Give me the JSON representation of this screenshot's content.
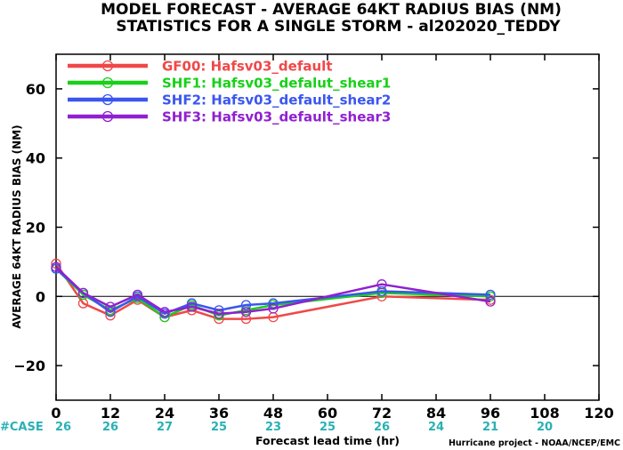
{
  "title_line1": "MODEL FORECAST - AVERAGE 64KT RADIUS BIAS (NM)",
  "title_line2": "STATISTICS FOR A SINGLE STORM - al202020_TEDDY",
  "credit": "Hurricane project - NOAA/NCEP/EMC",
  "case_label": "#CASE",
  "chart_data": {
    "type": "line",
    "ylabel": "AVERAGE 64KT RADIUS BIAS (NM)",
    "xlabel": "Forecast lead time (hr)",
    "xlim": [
      0,
      120
    ],
    "ylim": [
      -30,
      70
    ],
    "xticks": [
      0,
      12,
      24,
      36,
      48,
      60,
      72,
      84,
      96,
      108,
      120
    ],
    "yticks": [
      -20,
      0,
      20,
      40,
      60
    ],
    "zero_line": true,
    "case_counts": [
      {
        "x": 0,
        "n": "26"
      },
      {
        "x": 12,
        "n": "26"
      },
      {
        "x": 24,
        "n": "27"
      },
      {
        "x": 36,
        "n": "25"
      },
      {
        "x": 48,
        "n": "23"
      },
      {
        "x": 60,
        "n": "25"
      },
      {
        "x": 72,
        "n": "26"
      },
      {
        "x": 84,
        "n": "24"
      },
      {
        "x": 96,
        "n": "21"
      },
      {
        "x": 108,
        "n": "20"
      }
    ],
    "legend_position": "top-left",
    "series": [
      {
        "name": "GF00: Hafsv03_default",
        "color": "#f04848",
        "points": [
          [
            0,
            9.5
          ],
          [
            6,
            -2
          ],
          [
            12,
            -5.5
          ],
          [
            18,
            -1
          ],
          [
            24,
            -6
          ],
          [
            30,
            -4
          ],
          [
            36,
            -6.5
          ],
          [
            42,
            -6.5
          ],
          [
            48,
            -6
          ],
          [
            72,
            0
          ],
          [
            96,
            -1
          ]
        ]
      },
      {
        "name": "SHF1: Hafsv03_defalut_shear1",
        "color": "#18d018",
        "points": [
          [
            0,
            8
          ],
          [
            6,
            0.5
          ],
          [
            12,
            -4
          ],
          [
            18,
            -0.5
          ],
          [
            24,
            -6
          ],
          [
            30,
            -2.5
          ],
          [
            36,
            -5.5
          ],
          [
            42,
            -4
          ],
          [
            48,
            -2.5
          ],
          [
            72,
            1
          ],
          [
            96,
            0
          ]
        ]
      },
      {
        "name": "SHF2: Hafsv03_default_shear2",
        "color": "#3a56f0",
        "points": [
          [
            0,
            8
          ],
          [
            6,
            1
          ],
          [
            12,
            -4.5
          ],
          [
            18,
            0
          ],
          [
            24,
            -5
          ],
          [
            30,
            -2
          ],
          [
            36,
            -4
          ],
          [
            42,
            -2.5
          ],
          [
            48,
            -2
          ],
          [
            72,
            1.5
          ],
          [
            96,
            0.5
          ]
        ]
      },
      {
        "name": "SHF3: Hafsv03_default_shear3",
        "color": "#9020d0",
        "points": [
          [
            0,
            8.5
          ],
          [
            6,
            1
          ],
          [
            12,
            -3
          ],
          [
            18,
            0.5
          ],
          [
            24,
            -4.5
          ],
          [
            30,
            -3
          ],
          [
            36,
            -5
          ],
          [
            42,
            -4.5
          ],
          [
            48,
            -3.5
          ],
          [
            72,
            3.5
          ],
          [
            96,
            -1.5
          ]
        ]
      }
    ]
  }
}
